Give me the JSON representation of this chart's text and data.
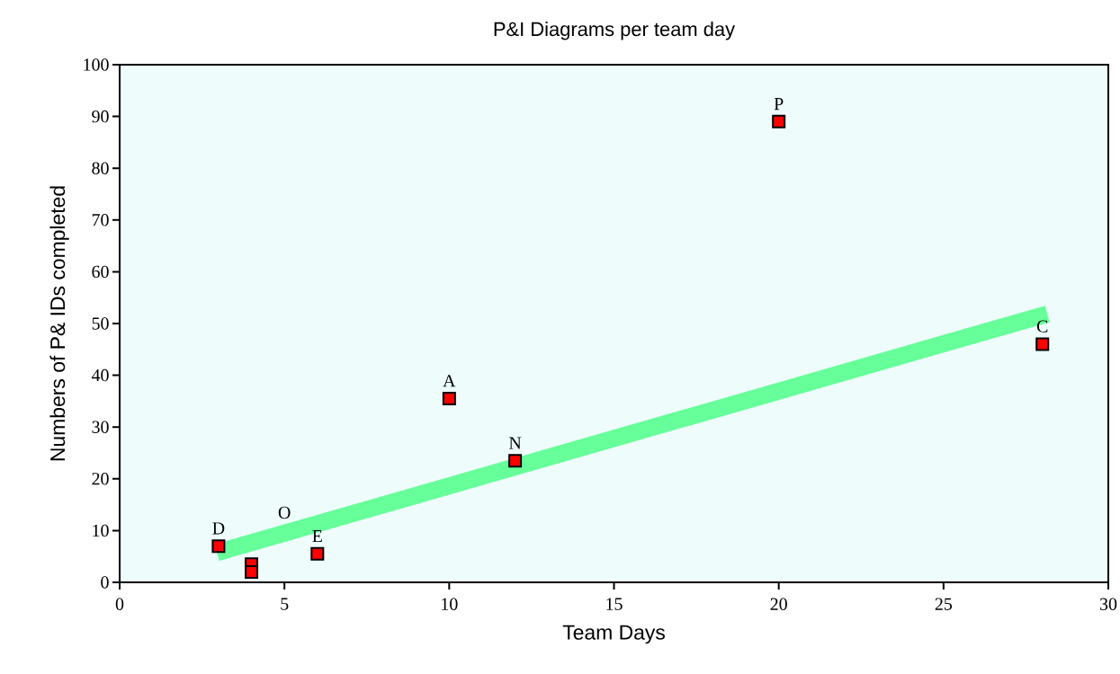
{
  "chart_data": {
    "type": "scatter",
    "title": "P&I Diagrams per team day",
    "xlabel": "Team Days",
    "ylabel": "Numbers of P& IDs completed",
    "xlim": [
      0,
      30
    ],
    "ylim": [
      0,
      100
    ],
    "xticks": [
      0,
      5,
      10,
      15,
      20,
      25,
      30
    ],
    "yticks": [
      0,
      10,
      20,
      30,
      40,
      50,
      60,
      70,
      80,
      90,
      100
    ],
    "grid": false,
    "marker": "square",
    "series": [
      {
        "color": "#ff0000",
        "x": [
          3,
          4,
          4,
          6,
          10,
          12,
          20,
          28
        ],
        "values": [
          7,
          3.5,
          2,
          5.5,
          35.5,
          23.5,
          89,
          46
        ]
      },
      {
        "type": "line",
        "color": "#66ff99",
        "marker": "none",
        "x": [
          3.2,
          27.9
        ],
        "values": [
          6.2,
          51.4
        ]
      }
    ],
    "annotations": [
      {
        "text": "D",
        "x": 3,
        "y": 7
      },
      {
        "text": "O",
        "x": 5,
        "y": 10
      },
      {
        "text": "E",
        "x": 6,
        "y": 5.5
      },
      {
        "text": "A",
        "x": 10,
        "y": 35.5
      },
      {
        "text": "N",
        "x": 12,
        "y": 23.5
      },
      {
        "text": "P",
        "x": 20,
        "y": 89
      },
      {
        "text": "C",
        "x": 28,
        "y": 46
      }
    ]
  }
}
